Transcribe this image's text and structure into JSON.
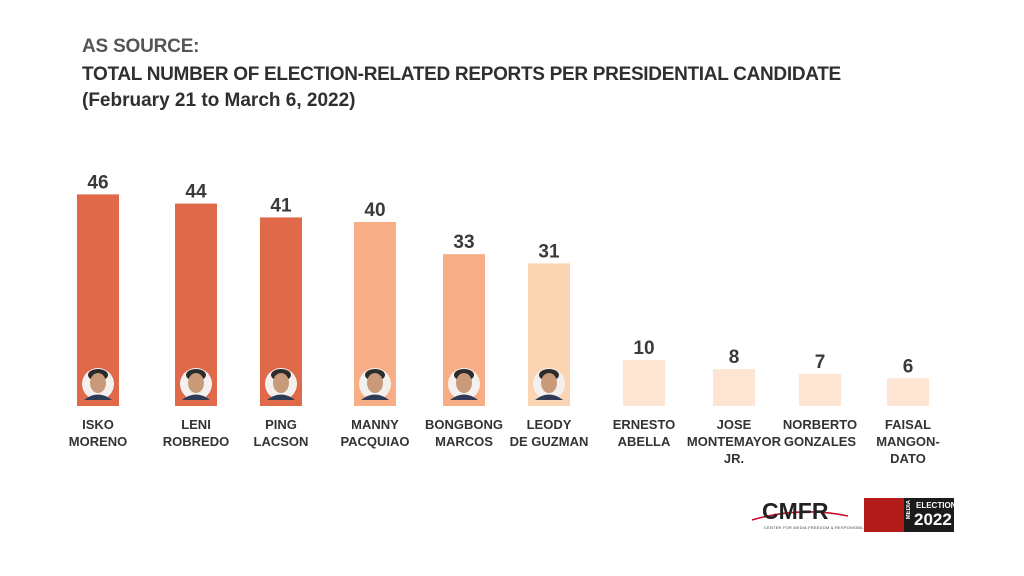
{
  "header": {
    "line1": "AS SOURCE:",
    "line2": "TOTAL NUMBER OF  ELECTION-RELATED REPORTS PER PRESIDENTIAL CANDIDATE",
    "line3": "(February 21 to March 6, 2022)"
  },
  "chart_data": {
    "type": "bar",
    "title": "TOTAL NUMBER OF  ELECTION-RELATED REPORTS PER PRESIDENTIAL CANDIDATE",
    "subtitle": "(February 21 to March 6, 2022)",
    "categories": [
      [
        "ISKO",
        "MORENO"
      ],
      [
        "LENI",
        "ROBREDO"
      ],
      [
        "PING",
        "LACSON"
      ],
      [
        "MANNY",
        "PACQUIAO"
      ],
      [
        "BONGBONG",
        "MARCOS"
      ],
      [
        "LEODY",
        "DE GUZMAN"
      ],
      [
        "ERNESTO",
        "ABELLA"
      ],
      [
        "JOSE",
        "MONTEMAYOR",
        "JR."
      ],
      [
        "NORBERTO",
        "GONZALES"
      ],
      [
        "FAISAL",
        "MANGON-",
        "DATO"
      ]
    ],
    "values": [
      46,
      44,
      41,
      40,
      33,
      31,
      10,
      8,
      7,
      6
    ],
    "bar_colors": [
      "#e0694a",
      "#e0694a",
      "#e0694a",
      "#f7ad85",
      "#f7ad85",
      "#fbd4b4",
      "#fde4d3",
      "#fde4d3",
      "#fde4d3",
      "#fde4d3"
    ],
    "has_portrait": [
      true,
      true,
      true,
      true,
      true,
      true,
      false,
      false,
      false,
      false
    ],
    "data_labels": [
      "46",
      "44",
      "41",
      "40",
      "33",
      "31",
      "10",
      "8",
      "7",
      "6"
    ],
    "grid": false,
    "legend": "none",
    "xlabel": "",
    "ylabel": ""
  },
  "logos": {
    "cmfr": "CMFR",
    "cmfr_sub": "CENTER FOR MEDIA FREEDOM & RESPONSIBILITY",
    "media": "MEDIA",
    "elections": "ELECTIONS",
    "year": "2022"
  }
}
